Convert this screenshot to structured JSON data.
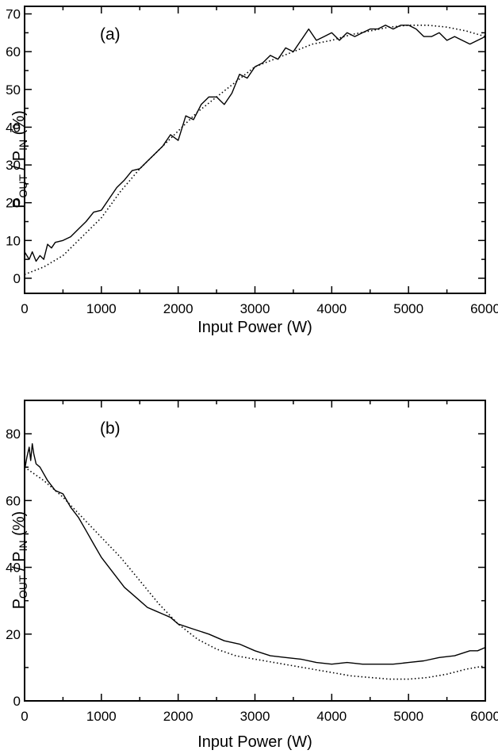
{
  "chart_data": [
    {
      "panel_label": "(a)",
      "type": "line",
      "xlabel": "Input Power (W)",
      "ylabel_main": "P",
      "ylabel_sub1": "OUT",
      "ylabel_mid": " / P",
      "ylabel_sub2": "IN",
      "ylabel_tail": " (%)",
      "xlim": [
        0,
        6000
      ],
      "ylim": [
        -4,
        72
      ],
      "xticks": [
        0,
        1000,
        2000,
        3000,
        4000,
        5000,
        6000
      ],
      "yticks": [
        0,
        10,
        20,
        30,
        40,
        50,
        60,
        70
      ],
      "grid": false,
      "series": [
        {
          "style": "solid",
          "x": [
            0,
            60,
            100,
            150,
            200,
            250,
            300,
            350,
            400,
            500,
            600,
            700,
            800,
            900,
            1000,
            1100,
            1200,
            1300,
            1400,
            1500,
            1600,
            1700,
            1800,
            1900,
            2000,
            2100,
            2200,
            2300,
            2400,
            2500,
            2600,
            2700,
            2800,
            2900,
            3000,
            3100,
            3200,
            3300,
            3400,
            3500,
            3600,
            3700,
            3800,
            3900,
            4000,
            4100,
            4200,
            4300,
            4400,
            4500,
            4600,
            4700,
            4800,
            4900,
            5000,
            5100,
            5200,
            5300,
            5400,
            5500,
            5600,
            5700,
            5800,
            5900,
            6000
          ],
          "y": [
            7,
            5,
            7,
            4.5,
            6,
            5,
            9,
            8,
            9.5,
            10,
            11,
            13,
            15,
            17.5,
            18,
            21,
            24,
            26,
            28.5,
            29,
            31,
            33,
            35,
            38,
            36.5,
            43,
            42,
            46,
            48,
            48,
            46,
            49,
            54,
            53,
            56,
            57,
            59,
            58,
            61,
            60,
            63,
            66,
            63,
            64,
            65,
            63,
            65,
            64,
            65,
            66,
            66,
            67,
            66,
            67,
            67,
            66,
            64,
            64,
            65,
            63,
            64,
            63,
            62,
            63,
            64
          ]
        },
        {
          "style": "dotted",
          "x": [
            0,
            250,
            500,
            750,
            1000,
            1250,
            1500,
            1750,
            2000,
            2250,
            2500,
            2750,
            3000,
            3250,
            3500,
            3750,
            4000,
            4250,
            4500,
            4750,
            5000,
            5250,
            5500,
            5750,
            6000
          ],
          "y": [
            1,
            3,
            6,
            11,
            16,
            23,
            29,
            34,
            39,
            44,
            48,
            52,
            56,
            58,
            60,
            62,
            63,
            64.5,
            65.5,
            66.5,
            67,
            67,
            66.5,
            65.5,
            64
          ]
        }
      ]
    },
    {
      "panel_label": "(b)",
      "type": "line",
      "xlabel": "Input Power (W)",
      "ylabel_main": "P",
      "ylabel_sub1": "OUT",
      "ylabel_mid": " / P",
      "ylabel_sub2": "IN",
      "ylabel_tail": " (%)",
      "xlim": [
        0,
        6000
      ],
      "ylim": [
        0,
        90
      ],
      "xticks": [
        0,
        1000,
        2000,
        3000,
        4000,
        5000,
        6000
      ],
      "yticks": [
        0,
        20,
        40,
        60,
        80
      ],
      "grid": false,
      "series": [
        {
          "style": "solid",
          "x": [
            0,
            30,
            60,
            80,
            100,
            120,
            150,
            200,
            300,
            400,
            500,
            600,
            700,
            800,
            900,
            1000,
            1100,
            1200,
            1300,
            1400,
            1500,
            1600,
            1700,
            1800,
            1900,
            2000,
            2200,
            2400,
            2600,
            2800,
            3000,
            3200,
            3400,
            3600,
            3800,
            4000,
            4200,
            4400,
            4600,
            4800,
            5000,
            5200,
            5400,
            5600,
            5800,
            5900,
            6000
          ],
          "y": [
            69,
            73,
            76,
            72,
            77,
            74,
            71,
            70,
            66,
            63,
            62,
            58,
            55,
            51,
            47,
            43,
            40,
            37,
            34,
            32,
            30,
            28,
            27,
            26,
            25,
            23,
            21.5,
            20,
            18,
            17,
            15,
            13.5,
            13,
            12.5,
            11.5,
            11,
            11.5,
            11,
            11,
            11,
            11.5,
            12,
            13,
            13.5,
            15,
            15,
            16
          ]
        },
        {
          "style": "dotted",
          "x": [
            0,
            250,
            500,
            750,
            1000,
            1250,
            1500,
            1750,
            2000,
            2250,
            2500,
            2750,
            3000,
            3250,
            3500,
            3750,
            4000,
            4250,
            4500,
            4750,
            5000,
            5250,
            5500,
            5750,
            6000
          ],
          "y": [
            70,
            66,
            61,
            55,
            49,
            43,
            36,
            29,
            23,
            18.5,
            15.5,
            13.5,
            12.5,
            11.5,
            10.5,
            9.5,
            8.5,
            7.5,
            7,
            6.5,
            6.5,
            7,
            8,
            9.5,
            10.5
          ]
        }
      ]
    }
  ]
}
